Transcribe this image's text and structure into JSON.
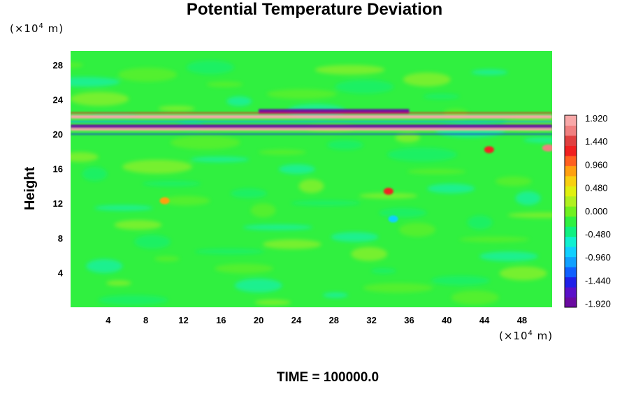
{
  "title": "Potential Temperature Deviation",
  "y_unit": "(×10⁴ m)",
  "x_unit": "(×10⁴ m)",
  "ylabel": "Height",
  "time_label": "TIME = 100000.0",
  "chart_data": {
    "type": "heatmap",
    "title": "Potential Temperature Deviation",
    "ylabel": "Height",
    "xlabel": "",
    "x_unit": "×10⁴ m",
    "y_unit": "×10⁴ m",
    "xlim": [
      0,
      51.2
    ],
    "ylim": [
      0,
      29.6
    ],
    "x_ticks": [
      4,
      8,
      12,
      16,
      20,
      24,
      28,
      32,
      36,
      40,
      44,
      48
    ],
    "y_ticks": [
      4,
      8,
      12,
      16,
      20,
      24,
      28
    ],
    "colorbar": {
      "min": -1.92,
      "max": 1.92,
      "tick_labels": [
        "1.920",
        "1.440",
        "0.960",
        "0.480",
        "0.000",
        "-0.480",
        "-0.960",
        "-1.440",
        "-1.920"
      ],
      "colors": [
        "#6a0aa0",
        "#5a10c8",
        "#2020e8",
        "#1060ff",
        "#10a0ff",
        "#10d0ff",
        "#10f0d0",
        "#10f080",
        "#30f040",
        "#70f020",
        "#b0f020",
        "#e0f010",
        "#f8d010",
        "#ffa010",
        "#ff6020",
        "#f02020",
        "#e04040",
        "#f08080",
        "#f8a8a8"
      ]
    },
    "features": [
      {
        "label": "warm band",
        "x_range": [
          0,
          51.2
        ],
        "y": 20.6,
        "value": 1.92
      },
      {
        "label": "warm band",
        "x_range": [
          0,
          51.2
        ],
        "y": 22.0,
        "value": 1.92
      },
      {
        "label": "cold band",
        "x_range": [
          0,
          51.2
        ],
        "y": 20.9,
        "value": -1.92
      },
      {
        "label": "cold band",
        "x_range": [
          20,
          36
        ],
        "y": 22.6,
        "value": -1.9
      },
      {
        "label": "warm patch",
        "x": 10,
        "y": 12.3,
        "value": 0.9
      },
      {
        "label": "warm patch",
        "x": 33.8,
        "y": 13.4,
        "value": 1.2
      },
      {
        "label": "cool patch",
        "x": 34.3,
        "y": 10.2,
        "value": -0.9
      },
      {
        "label": "warm patch",
        "x": 44.5,
        "y": 18.2,
        "value": 1.3
      },
      {
        "label": "warm patch",
        "x": 50.8,
        "y": 18.4,
        "value": 1.6
      }
    ]
  }
}
